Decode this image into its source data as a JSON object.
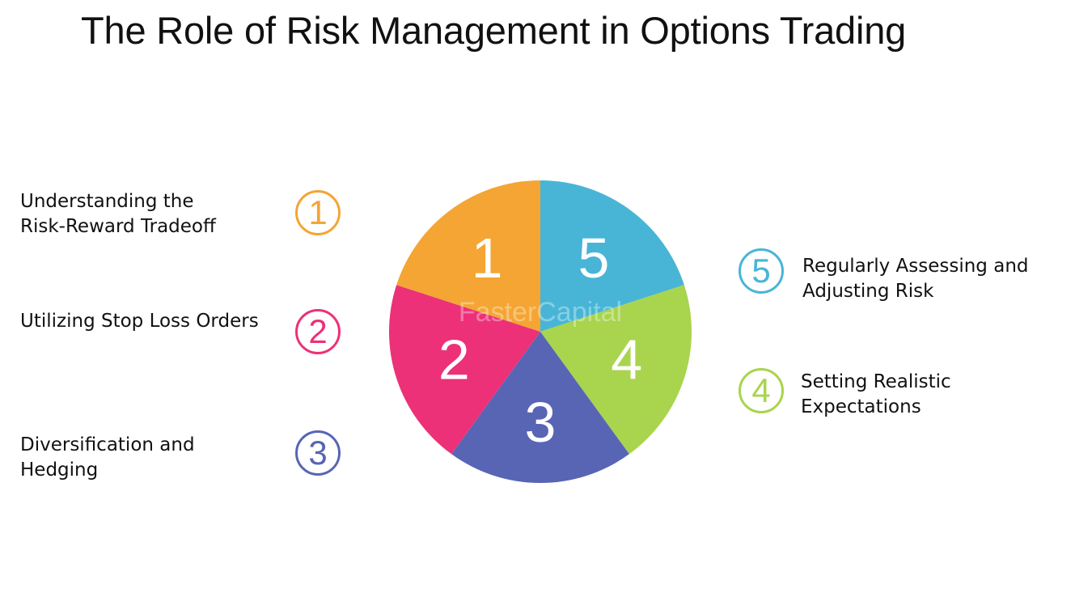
{
  "title": "The Role of Risk Management in Options Trading",
  "items": [
    {
      "number": "1",
      "lines": [
        "Understanding the",
        "Risk-Reward Tradeoff"
      ],
      "color": "#f4a533"
    },
    {
      "number": "2",
      "lines": [
        "Utilizing Stop Loss Orders"
      ],
      "color": "#ec3178"
    },
    {
      "number": "3",
      "lines": [
        "Diversification and",
        "Hedging"
      ],
      "color": "#5865b5"
    },
    {
      "number": "4",
      "lines": [
        "Setting Realistic",
        "Expectations"
      ],
      "color": "#a9d44e"
    },
    {
      "number": "5",
      "lines": [
        "Regularly Assessing and",
        "Adjusting Risk"
      ],
      "color": "#48b5d6"
    }
  ],
  "watermark": "FasterCapital"
}
